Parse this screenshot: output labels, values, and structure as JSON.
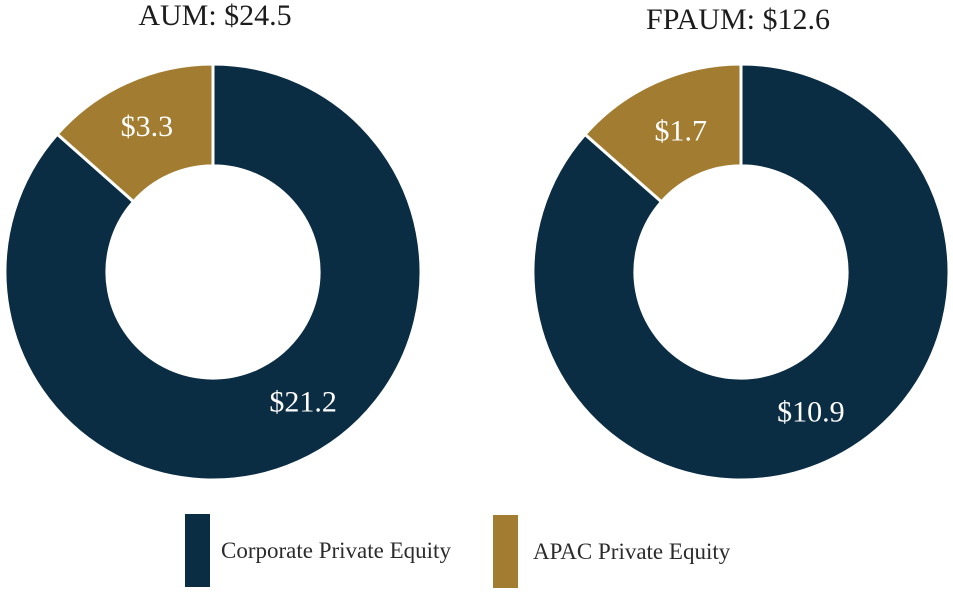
{
  "colors": {
    "navy": "#0b2d44",
    "gold": "#a27d31",
    "separator": "#ffffff",
    "slice_label_text": "#ffffff",
    "title_text": "#1c1c1c",
    "legend_text": "#2b2b2b",
    "background": "#ffffff"
  },
  "chart_data": [
    {
      "type": "pie",
      "subtype": "donut",
      "title": "AUM: $24.5",
      "total": 24.5,
      "categories": [
        "Corporate Private Equity",
        "APAC Private Equity"
      ],
      "values": [
        21.2,
        3.3
      ],
      "value_labels": [
        "$21.2",
        "$3.3"
      ],
      "slice_color_keys": [
        "navy",
        "gold"
      ],
      "layout": {
        "start_angle_deg": 0,
        "direction": "clockwise",
        "inner_radius_frac": 0.51,
        "label_angle_deg": [
          145.1,
          -24.3
        ],
        "label_radius_frac": [
          0.757,
          0.772
        ],
        "legend_position": "bottom"
      }
    },
    {
      "type": "pie",
      "subtype": "donut",
      "title": "FPAUM: $12.6",
      "total": 12.6,
      "categories": [
        "Corporate Private Equity",
        "APAC Private Equity"
      ],
      "values": [
        10.9,
        1.7
      ],
      "value_labels": [
        "$10.9",
        "$1.7"
      ],
      "slice_color_keys": [
        "navy",
        "gold"
      ],
      "layout": {
        "start_angle_deg": 0,
        "direction": "clockwise",
        "inner_radius_frac": 0.51,
        "label_angle_deg": [
          153.3,
          -23.0
        ],
        "label_radius_frac": [
          0.748,
          0.741
        ],
        "legend_position": "bottom"
      }
    }
  ],
  "legend": [
    {
      "label": "Corporate Private Equity",
      "color_key": "navy"
    },
    {
      "label": "APAC Private Equity",
      "color_key": "gold"
    }
  ]
}
